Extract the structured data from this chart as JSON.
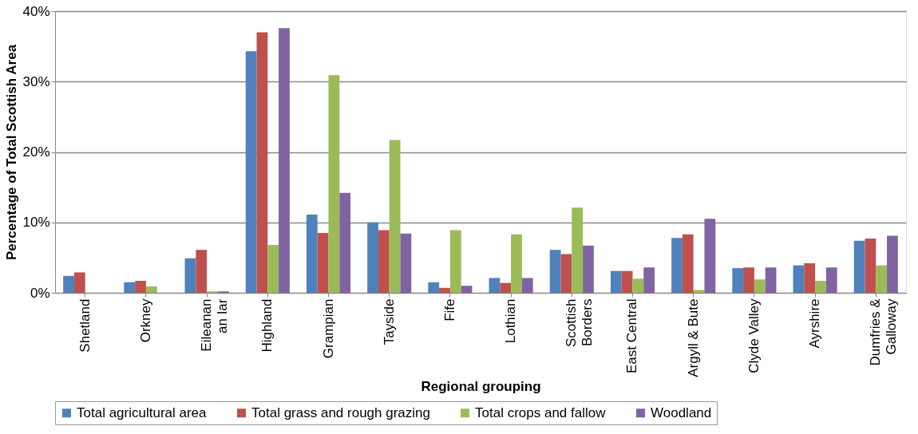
{
  "chart_data": {
    "type": "bar",
    "xlabel": "Regional grouping",
    "ylabel": "Percentage of Total Scottish Area",
    "categories": [
      "Shetland",
      "Orkney",
      "Eileanan\nan Iar",
      "Highland",
      "Grampian",
      "Tayside",
      "Fife",
      "Lothian",
      "Scottish\nBorders",
      "East Central",
      "Argyll & Bute",
      "Clyde Valley",
      "Ayrshire",
      "Dumfries &\nGalloway"
    ],
    "series": [
      {
        "name": "Total agricultural area",
        "color": "#4f81bd",
        "values": [
          2.4,
          1.5,
          4.9,
          34.3,
          11.1,
          10.0,
          1.5,
          2.1,
          6.1,
          3.1,
          7.8,
          3.5,
          3.9,
          7.4
        ]
      },
      {
        "name": "Total grass and rough grazing",
        "color": "#c0504d",
        "values": [
          2.9,
          1.7,
          6.1,
          37.0,
          8.5,
          8.9,
          0.7,
          1.4,
          5.5,
          3.1,
          8.3,
          3.6,
          4.2,
          7.7
        ]
      },
      {
        "name": "Total crops and fallow",
        "color": "#9bbb59",
        "values": [
          0,
          0.9,
          0.2,
          6.8,
          30.9,
          21.7,
          8.9,
          8.3,
          12.1,
          2.0,
          0.4,
          1.9,
          1.7,
          3.9
        ]
      },
      {
        "name": "Woodland",
        "color": "#8064a2",
        "values": [
          0,
          0,
          0.2,
          37.6,
          14.2,
          8.4,
          1.0,
          2.1,
          6.7,
          3.6,
          10.5,
          3.6,
          3.6,
          8.1
        ]
      }
    ],
    "ylim": [
      0,
      40
    ],
    "yticks": [
      {
        "value": 0,
        "label": "0%"
      },
      {
        "value": 10,
        "label": "10%"
      },
      {
        "value": 20,
        "label": "20%"
      },
      {
        "value": 30,
        "label": "30%"
      },
      {
        "value": 40,
        "label": "40%"
      }
    ],
    "grid": "y",
    "legend": "bottom"
  }
}
